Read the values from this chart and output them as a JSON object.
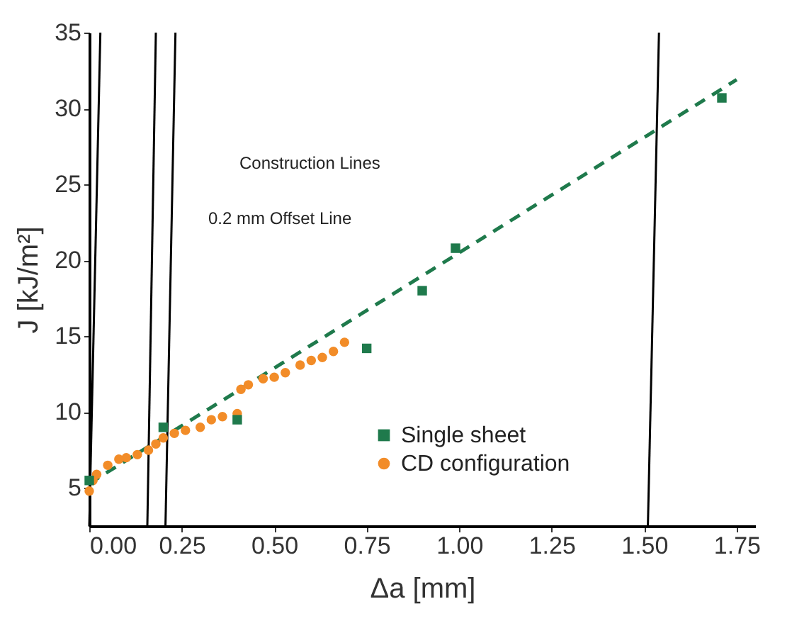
{
  "chart_data": {
    "type": "scatter",
    "xlabel": "Δa [mm]",
    "ylabel": "J [kJ/m²]",
    "xlim": [
      0,
      1.8
    ],
    "ylim": [
      2.5,
      35
    ],
    "xticks": [
      {
        "value": 0,
        "label": "0.00"
      },
      {
        "value": 0.25,
        "label": "0.25"
      },
      {
        "value": 0.5,
        "label": "0.50"
      },
      {
        "value": 0.75,
        "label": "0.75"
      },
      {
        "value": 1,
        "label": "1.00"
      },
      {
        "value": 1.25,
        "label": "1.25"
      },
      {
        "value": 1.5,
        "label": "1.50"
      },
      {
        "value": 1.75,
        "label": "1.75"
      }
    ],
    "yticks": [
      5,
      10,
      15,
      20,
      25,
      30,
      35
    ],
    "grid": false,
    "legend": "bottom right",
    "series": [
      {
        "type": "line",
        "color": "#1f7a4c",
        "line_style": "dashed",
        "x": [
          0,
          1.75
        ],
        "values": [
          5.3,
          31.9
        ]
      },
      {
        "type": "line",
        "color": "#000000",
        "line_style": "solid",
        "x": [
          0,
          0.03
        ],
        "values": [
          2.5,
          35
        ]
      },
      {
        "type": "line",
        "color": "#000000",
        "line_style": "solid",
        "x": [
          0.157,
          0.18
        ],
        "values": [
          2.5,
          35
        ]
      },
      {
        "type": "line",
        "color": "#000000",
        "line_style": "solid",
        "x": [
          0.206,
          0.233
        ],
        "values": [
          2.5,
          35
        ]
      },
      {
        "type": "line",
        "color": "#000000",
        "line_style": "solid",
        "x": [
          1.51,
          1.54
        ],
        "values": [
          2.5,
          35
        ]
      },
      {
        "name": "Single sheet",
        "marker": "square",
        "color": "#1f7a4c",
        "x": [
          0,
          0.2,
          0.4,
          0.75,
          0.9,
          0.99,
          1.71
        ],
        "values": [
          5.5,
          9.0,
          9.5,
          14.2,
          18.0,
          20.8,
          30.7
        ]
      },
      {
        "name": "CD configuration",
        "marker": "circle",
        "color": "#f28c28",
        "x": [
          0,
          0.01,
          0.02,
          0.05,
          0.08,
          0.1,
          0.13,
          0.16,
          0.18,
          0.2,
          0.23,
          0.26,
          0.3,
          0.33,
          0.36,
          0.4,
          0.41,
          0.43,
          0.47,
          0.5,
          0.53,
          0.57,
          0.6,
          0.63,
          0.66,
          0.69
        ],
        "values": [
          4.8,
          5.5,
          5.9,
          6.5,
          6.9,
          7.0,
          7.2,
          7.5,
          7.9,
          8.3,
          8.6,
          8.8,
          9.0,
          9.5,
          9.7,
          9.9,
          11.5,
          11.8,
          12.2,
          12.3,
          12.6,
          13.1,
          13.4,
          13.6,
          14.0,
          14.6
        ]
      }
    ],
    "annotations": [
      "Construction Lines",
      "0.2 mm Offset Line"
    ]
  }
}
